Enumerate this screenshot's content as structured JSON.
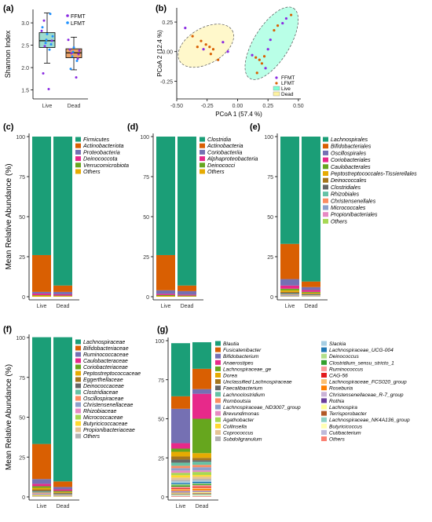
{
  "colors": {
    "green": "#1b9e77",
    "orange": "#d95f02",
    "purple": "#7570b3",
    "pink": "#e7298a",
    "lime": "#66a61e",
    "gold": "#e6ab02",
    "brown": "#a6761d",
    "grey": "#666666",
    "live_fill": "#9ddcd0",
    "dead_fill": "#e9a268",
    "ffmt": "#8a2be2",
    "lfmt": "#1e90ff",
    "pcoa_live": "#7fffd4",
    "pcoa_dead": "#fff3a0"
  },
  "chart_data": [
    {
      "panel": "(a)",
      "type": "box",
      "ylabel": "Shannon Index",
      "categories": [
        "Live",
        "Dead"
      ],
      "ylim": [
        1.3,
        3.3
      ],
      "yticks": [
        1.5,
        2.0,
        2.5,
        3.0
      ],
      "legend": [
        "FFMT",
        "LFMT"
      ],
      "boxes": [
        {
          "name": "Live",
          "min": 2.1,
          "q1": 2.45,
          "median": 2.6,
          "q3": 2.78,
          "max": 3.22
        },
        {
          "name": "Dead",
          "min": 1.95,
          "q1": 2.22,
          "median": 2.33,
          "q3": 2.42,
          "max": 2.68
        }
      ],
      "points": {
        "Live": [
          [
            2.82,
            "FFMT"
          ],
          [
            2.75,
            "LFMT"
          ],
          [
            2.7,
            "LFMT"
          ],
          [
            2.62,
            "LFMT"
          ],
          [
            2.6,
            "FFMT"
          ],
          [
            2.55,
            "LFMT"
          ],
          [
            2.52,
            "LFMT"
          ],
          [
            2.48,
            "FFMT"
          ],
          [
            3.2,
            "LFMT"
          ],
          [
            3.05,
            "FFMT"
          ],
          [
            2.4,
            "LFMT"
          ],
          [
            1.87,
            "FFMT"
          ],
          [
            1.52,
            "FFMT"
          ],
          [
            2.9,
            "LFMT"
          ]
        ],
        "Dead": [
          [
            2.62,
            "FFMT"
          ],
          [
            2.45,
            "LFMT"
          ],
          [
            2.38,
            "FFMT"
          ],
          [
            2.35,
            "LFMT"
          ],
          [
            2.3,
            "FFMT"
          ],
          [
            2.25,
            "LFMT"
          ],
          [
            2.2,
            "FFMT"
          ],
          [
            2.32,
            "FFMT"
          ],
          [
            2.15,
            "LFMT"
          ],
          [
            1.97,
            "LFMT"
          ],
          [
            1.78,
            "FFMT"
          ],
          [
            2.4,
            "FFMT"
          ]
        ]
      }
    },
    {
      "panel": "(b)",
      "type": "scatter",
      "xlabel": "PCoA 1 (57.4 %)",
      "ylabel": "PCoA 2 (12.4 %)",
      "xlim": [
        -0.5,
        0.52
      ],
      "ylim": [
        -0.4,
        0.37
      ],
      "xticks": [
        -0.5,
        -0.25,
        0.0,
        0.25,
        0.5
      ],
      "yticks": [
        -0.25,
        0.0,
        0.25
      ],
      "legend": [
        "FFMT",
        "LFMT",
        "Live",
        "Dead"
      ],
      "points": [
        [
          -0.43,
          0.2,
          "FFMT"
        ],
        [
          -0.37,
          0.13,
          "LFMT"
        ],
        [
          -0.33,
          0.04,
          "LFMT"
        ],
        [
          -0.28,
          0.02,
          "FFMT"
        ],
        [
          -0.26,
          0.06,
          "LFMT"
        ],
        [
          -0.23,
          0.04,
          "LFMT"
        ],
        [
          -0.22,
          -0.02,
          "LFMT"
        ],
        [
          -0.2,
          0.02,
          "LFMT"
        ],
        [
          -0.16,
          -0.07,
          "LFMT"
        ],
        [
          -0.12,
          0.08,
          "FFMT"
        ],
        [
          -0.08,
          0.0,
          "FFMT"
        ],
        [
          -0.3,
          0.09,
          "LFMT"
        ],
        [
          0.12,
          -0.03,
          "FFMT"
        ],
        [
          0.15,
          -0.05,
          "LFMT"
        ],
        [
          0.18,
          -0.07,
          "LFMT"
        ],
        [
          0.2,
          -0.1,
          "LFMT"
        ],
        [
          0.22,
          -0.04,
          "LFMT"
        ],
        [
          0.25,
          0.02,
          "FFMT"
        ],
        [
          0.27,
          0.1,
          "FFMT"
        ],
        [
          0.3,
          0.18,
          "LFMT"
        ],
        [
          0.33,
          0.22,
          "LFMT"
        ],
        [
          0.37,
          0.24,
          "FFMT"
        ],
        [
          0.4,
          0.28,
          "FFMT"
        ],
        [
          0.44,
          0.31,
          "LFMT"
        ],
        [
          0.16,
          -0.18,
          "LFMT"
        ],
        [
          0.23,
          -0.14,
          "FFMT"
        ]
      ],
      "ellipses": [
        {
          "name": "Dead",
          "cx": -0.26,
          "cy": 0.05,
          "rx": 0.25,
          "ry": 0.15,
          "angle": -30
        },
        {
          "name": "Live",
          "cx": 0.28,
          "cy": 0.07,
          "rx": 0.34,
          "ry": 0.15,
          "angle": -58
        }
      ]
    },
    {
      "panel": "(c)",
      "type": "stacked_bar",
      "ylabel": "Mean Relative Abundance (%)",
      "categories": [
        "Live",
        "Dead"
      ],
      "ylim": [
        0,
        100
      ],
      "yticks": [
        0,
        25,
        50,
        75,
        100
      ],
      "series": [
        {
          "name": "Firmicutes",
          "color": "#1b9e77",
          "values": [
            74,
            93
          ]
        },
        {
          "name": "Actinobacteriota",
          "color": "#d95f02",
          "values": [
            23,
            4
          ]
        },
        {
          "name": "Proteobacteria",
          "color": "#7570b3",
          "values": [
            1,
            1.5
          ]
        },
        {
          "name": "Deinococcota",
          "color": "#e7298a",
          "values": [
            1,
            0.8
          ]
        },
        {
          "name": "Verrucomicrobiota",
          "color": "#66a61e",
          "values": [
            0.3,
            0.3
          ]
        },
        {
          "name": "Others",
          "color": "#e6ab02",
          "values": [
            0.7,
            0.4
          ]
        }
      ]
    },
    {
      "panel": "(d)",
      "type": "stacked_bar",
      "categories": [
        "Live",
        "Dead"
      ],
      "ylim": [
        0,
        100
      ],
      "yticks": [
        0,
        25,
        50,
        75,
        100
      ],
      "series": [
        {
          "name": "Clostridia",
          "color": "#1b9e77",
          "values": [
            74,
            93
          ]
        },
        {
          "name": "Actinobacteria",
          "color": "#d95f02",
          "values": [
            22,
            3.5
          ]
        },
        {
          "name": "Coriobacteriia",
          "color": "#7570b3",
          "values": [
            2.2,
            2.2
          ]
        },
        {
          "name": "Alphaproteobacteria",
          "color": "#e7298a",
          "values": [
            0.8,
            0.6
          ]
        },
        {
          "name": "Deinococci",
          "color": "#66a61e",
          "values": [
            0.5,
            0.4
          ]
        },
        {
          "name": "Others",
          "color": "#e6ab02",
          "values": [
            0.5,
            0.3
          ]
        }
      ]
    },
    {
      "panel": "(e)",
      "type": "stacked_bar",
      "categories": [
        "Live",
        "Dead"
      ],
      "ylim": [
        0,
        100
      ],
      "yticks": [
        0,
        25,
        50,
        75,
        100
      ],
      "series": [
        {
          "name": "Lachnospirales",
          "color": "#1b9e77",
          "values": [
            67,
            90.5
          ]
        },
        {
          "name": "Bifidobacteriales",
          "color": "#d95f02",
          "values": [
            22,
            3.5
          ]
        },
        {
          "name": "Oscillospirales",
          "color": "#7570b3",
          "values": [
            4,
            1.8
          ]
        },
        {
          "name": "Coriobacteriales",
          "color": "#e7298a",
          "values": [
            2,
            1.2
          ]
        },
        {
          "name": "Caulobacterales",
          "color": "#66a61e",
          "values": [
            1,
            0.5
          ]
        },
        {
          "name": "Peptostreptococcales-Tissierellales",
          "color": "#e6ab02",
          "values": [
            1,
            0.5
          ]
        },
        {
          "name": "Deinococcales",
          "color": "#a6761d",
          "values": [
            0.6,
            0.4
          ]
        },
        {
          "name": "Clostridiales",
          "color": "#666666",
          "values": [
            0.6,
            0.4
          ]
        },
        {
          "name": "Rhizobiales",
          "color": "#66c2a5",
          "values": [
            0.4,
            0.3
          ]
        },
        {
          "name": "Christensenellales",
          "color": "#fc8d62",
          "values": [
            0.4,
            0.3
          ]
        },
        {
          "name": "Micrococcales",
          "color": "#8da0cb",
          "values": [
            0.4,
            0.2
          ]
        },
        {
          "name": "Propionibacteriales",
          "color": "#e78ac3",
          "values": [
            0.3,
            0.2
          ]
        },
        {
          "name": "Others",
          "color": "#a6d854",
          "values": [
            0.3,
            0.2
          ]
        }
      ]
    },
    {
      "panel": "(f)",
      "type": "stacked_bar",
      "ylabel": "Mean Relative Abundance (%)",
      "categories": [
        "Live",
        "Dead"
      ],
      "ylim": [
        0,
        100
      ],
      "yticks": [
        0,
        25,
        50,
        75,
        100
      ],
      "series": [
        {
          "name": "Lachnospiraceae",
          "color": "#1b9e77",
          "values": [
            67,
            90.5
          ]
        },
        {
          "name": "Bifidobacteriaceae",
          "color": "#d95f02",
          "values": [
            22,
            3.5
          ]
        },
        {
          "name": "Ruminococcaceae",
          "color": "#7570b3",
          "values": [
            3,
            1.5
          ]
        },
        {
          "name": "Caulobacteraceae",
          "color": "#e7298a",
          "values": [
            1.5,
            1
          ]
        },
        {
          "name": "Coriobacteriaceae",
          "color": "#66a61e",
          "values": [
            1,
            0.6
          ]
        },
        {
          "name": "Peptostreptococcaceae",
          "color": "#e6ab02",
          "values": [
            1,
            0.5
          ]
        },
        {
          "name": "Eggerthellaceae",
          "color": "#a6761d",
          "values": [
            0.8,
            0.4
          ]
        },
        {
          "name": "Deinococcaceae",
          "color": "#666666",
          "values": [
            0.6,
            0.4
          ]
        },
        {
          "name": "Clostridiaceae",
          "color": "#66c2a5",
          "values": [
            0.6,
            0.3
          ]
        },
        {
          "name": "Oscillospiraceae",
          "color": "#fc8d62",
          "values": [
            0.6,
            0.3
          ]
        },
        {
          "name": "Christensenellaceae",
          "color": "#8da0cb",
          "values": [
            0.5,
            0.3
          ]
        },
        {
          "name": "Rhizobiaceae",
          "color": "#e78ac3",
          "values": [
            0.4,
            0.2
          ]
        },
        {
          "name": "Micrococcaceae",
          "color": "#a6d854",
          "values": [
            0.4,
            0.2
          ]
        },
        {
          "name": "Butyricicoccaceae",
          "color": "#ffd92f",
          "values": [
            0.3,
            0.2
          ]
        },
        {
          "name": "Propionibacteriaceae",
          "color": "#e5c494",
          "values": [
            0.2,
            0.1
          ]
        },
        {
          "name": "Others",
          "color": "#b3b3b3",
          "values": [
            0.3,
            0.2
          ]
        }
      ]
    },
    {
      "panel": "(g)",
      "type": "stacked_bar",
      "categories": [
        "Live",
        "Dead"
      ],
      "ylim": [
        0,
        100
      ],
      "yticks": [
        0,
        25,
        50,
        75,
        100
      ],
      "series": [
        {
          "name": "Blautia",
          "color": "#1b9e77",
          "values": [
            34,
            17
          ]
        },
        {
          "name": "Fusicatenibacter",
          "color": "#d95f02",
          "values": [
            8,
            13
          ]
        },
        {
          "name": "Bifidobacterium",
          "color": "#7570b3",
          "values": [
            22,
            3
          ]
        },
        {
          "name": "Anaerostipes",
          "color": "#e7298a",
          "values": [
            3.5,
            16
          ]
        },
        {
          "name": "Lachnospiraceae_ge",
          "color": "#66a61e",
          "values": [
            2,
            22
          ]
        },
        {
          "name": "Dorea",
          "color": "#e6ab02",
          "values": [
            3,
            3
          ]
        },
        {
          "name": "Unclassified Lachnospiraceae",
          "color": "#a6761d",
          "values": [
            2,
            1.5
          ]
        },
        {
          "name": "Faecalibacterium",
          "color": "#666666",
          "values": [
            2,
            1
          ]
        },
        {
          "name": "Lachnoclostridium",
          "color": "#66c2a5",
          "values": [
            2,
            2
          ]
        },
        {
          "name": "Romboutsia",
          "color": "#fc8d62",
          "values": [
            1.5,
            1.5
          ]
        },
        {
          "name": "Lachnospiraceae_ND3007_group",
          "color": "#8da0cb",
          "values": [
            1.5,
            2
          ]
        },
        {
          "name": "Brevundimonas",
          "color": "#e78ac3",
          "values": [
            1.5,
            1
          ]
        },
        {
          "name": "Agathobacter",
          "color": "#a6d854",
          "values": [
            1.5,
            2
          ]
        },
        {
          "name": "Collinsella",
          "color": "#ffd92f",
          "values": [
            1.5,
            1
          ]
        },
        {
          "name": "Coprococcus",
          "color": "#e5c494",
          "values": [
            1.5,
            1.5
          ]
        },
        {
          "name": "Subdoligranulum",
          "color": "#b3b3b3",
          "values": [
            1,
            1
          ]
        },
        {
          "name": "Slackia",
          "color": "#a6cee3",
          "values": [
            1,
            0.8
          ]
        },
        {
          "name": "Lachnospiraceae_UCG-004",
          "color": "#1f78b4",
          "values": [
            0.8,
            1
          ]
        },
        {
          "name": "Deinococcus",
          "color": "#b2df8a",
          "values": [
            0.8,
            0.6
          ]
        },
        {
          "name": "Clostridium_sensu_stricto_1",
          "color": "#33a02c",
          "values": [
            0.8,
            0.6
          ]
        },
        {
          "name": "Ruminococcus",
          "color": "#fb9a99",
          "values": [
            0.8,
            1
          ]
        },
        {
          "name": "CAG-56",
          "color": "#e31a1c",
          "values": [
            0.6,
            0.6
          ]
        },
        {
          "name": "Lachnospiraceae_FCS020_group",
          "color": "#fdbf6f",
          "values": [
            0.6,
            0.8
          ]
        },
        {
          "name": "Roseburia",
          "color": "#ff7f00",
          "values": [
            0.6,
            1
          ]
        },
        {
          "name": "Christensenellaceae_R-7_group",
          "color": "#cab2d6",
          "values": [
            0.6,
            0.5
          ]
        },
        {
          "name": "Rothia",
          "color": "#6a3d9a",
          "values": [
            0.5,
            0.4
          ]
        },
        {
          "name": "Lachnospira",
          "color": "#ffff99",
          "values": [
            0.6,
            0.8
          ]
        },
        {
          "name": "Terrisporobacter",
          "color": "#b15928",
          "values": [
            0.5,
            0.6
          ]
        },
        {
          "name": "Lachnospiraceae_NK4A136_group",
          "color": "#8dd3c7",
          "values": [
            0.5,
            0.6
          ]
        },
        {
          "name": "Butyricicoccus",
          "color": "#ffffb3",
          "values": [
            0.4,
            0.5
          ]
        },
        {
          "name": "Cutibacterium",
          "color": "#bebada",
          "values": [
            0.4,
            0.3
          ]
        },
        {
          "name": "Others",
          "color": "#fb8072",
          "values": [
            0.4,
            0.4
          ]
        }
      ]
    }
  ]
}
